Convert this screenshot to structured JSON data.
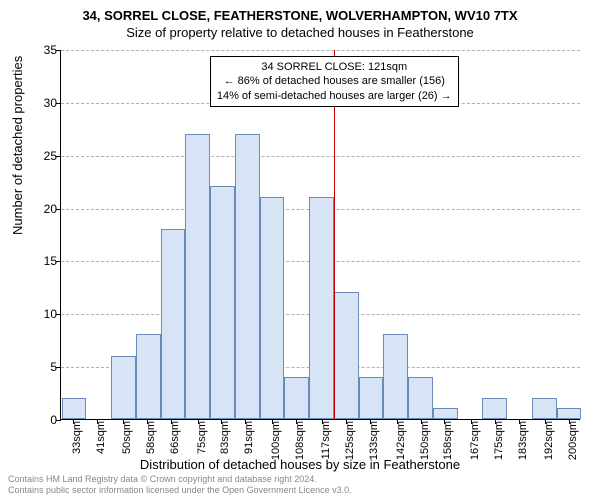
{
  "title": "34, SORREL CLOSE, FEATHERSTONE, WOLVERHAMPTON, WV10 7TX",
  "subtitle": "Size of property relative to detached houses in Featherstone",
  "ylabel": "Number of detached properties",
  "xlabel": "Distribution of detached houses by size in Featherstone",
  "footnote_l1": "Contains HM Land Registry data © Crown copyright and database right 2024.",
  "footnote_l2": "Contains public sector information licensed under the Open Government Licence v3.0.",
  "annotation_l1": "34 SORREL CLOSE: 121sqm",
  "annotation_l2": "← 86% of detached houses are smaller (156)",
  "annotation_l3": "14% of semi-detached houses are larger (26) →",
  "chart": {
    "type": "histogram",
    "background_color": "#ffffff",
    "bar_fill": "#d6e4f5",
    "bar_border": "#6a8bb8",
    "grid_color": "#b0b0b0",
    "redline_color": "#cc0000",
    "redline_x": 121,
    "xlim": [
      29,
      204
    ],
    "ylim": [
      0,
      35
    ],
    "ytick_step": 5,
    "xticks": [
      33,
      41,
      50,
      58,
      66,
      75,
      83,
      91,
      100,
      108,
      117,
      125,
      133,
      142,
      150,
      158,
      167,
      175,
      183,
      192,
      200
    ],
    "xtick_suffix": "sqm",
    "bin_width": 8.33,
    "bins": [
      {
        "x": 29.17,
        "count": 2
      },
      {
        "x": 37.5,
        "count": 0
      },
      {
        "x": 45.83,
        "count": 6
      },
      {
        "x": 54.17,
        "count": 8
      },
      {
        "x": 62.5,
        "count": 18
      },
      {
        "x": 70.83,
        "count": 27
      },
      {
        "x": 79.17,
        "count": 22
      },
      {
        "x": 87.5,
        "count": 27
      },
      {
        "x": 95.83,
        "count": 21
      },
      {
        "x": 104.17,
        "count": 4
      },
      {
        "x": 112.5,
        "count": 21
      },
      {
        "x": 120.83,
        "count": 12
      },
      {
        "x": 129.17,
        "count": 4
      },
      {
        "x": 137.5,
        "count": 8
      },
      {
        "x": 145.83,
        "count": 4
      },
      {
        "x": 154.17,
        "count": 1
      },
      {
        "x": 162.5,
        "count": 0
      },
      {
        "x": 170.83,
        "count": 2
      },
      {
        "x": 179.17,
        "count": 0
      },
      {
        "x": 187.5,
        "count": 2
      },
      {
        "x": 195.83,
        "count": 1
      }
    ],
    "title_fontsize": 13,
    "label_fontsize": 13,
    "tick_fontsize": 11
  }
}
